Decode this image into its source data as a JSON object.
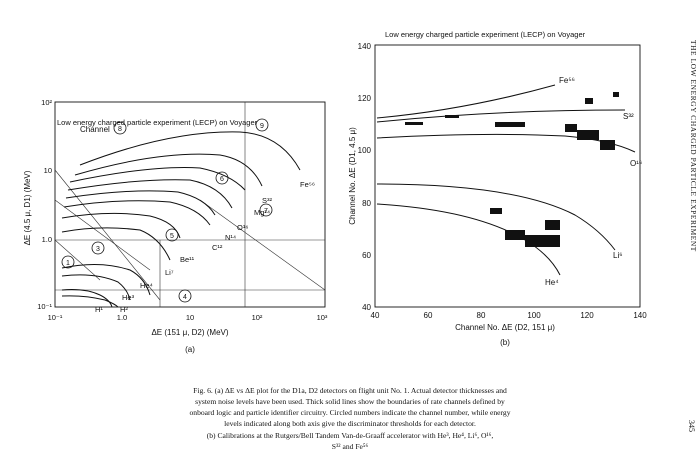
{
  "running_head": "THE LOW ENERGY CHARGED PARTICLE EXPERIMENT",
  "page_number": "345",
  "panel_a": {
    "title": "Low energy charged particle experiment (LECP) on Voyager",
    "xlabel": "ΔE (151 μ, D2) (MeV)",
    "ylabel": "ΔE (4.5 μ, D1) (MeV)",
    "label": "(a)",
    "channel_label": "Channel",
    "x_ticks": [
      "10⁻¹",
      "1.0",
      "10",
      "10²",
      "10³"
    ],
    "y_ticks": [
      "10²",
      "10",
      "1.0",
      "10⁻¹"
    ],
    "curve_labels": [
      "Fe⁵⁶",
      "S³²",
      "Mg²⁴",
      "O¹⁶",
      "N¹⁴",
      "C¹²",
      "Be¹¹",
      "Li⁷",
      "He⁴",
      "He³",
      "H¹",
      "H²"
    ],
    "channel_numbers": [
      "1",
      "3",
      "4",
      "5",
      "6",
      "7",
      "8",
      "9"
    ]
  },
  "panel_b": {
    "title": "Low energy charged particle experiment (LECP) on Voyager",
    "xlabel": "Channel No. ΔE (D2, 151 μ)",
    "ylabel": "Channel No. ΔE (D1, 4.5 μ)",
    "label": "(b)",
    "x_ticks": [
      "40",
      "60",
      "80",
      "100",
      "120",
      "140"
    ],
    "y_ticks": [
      "140",
      "120",
      "100",
      "80",
      "60",
      "40"
    ],
    "curve_labels": [
      "Fe⁵⁶",
      "S³²",
      "O¹⁶",
      "Li⁶",
      "He⁴"
    ]
  },
  "caption": {
    "line1": "Fig. 6.   (a) ΔE vs ΔE plot for the D1a, D2 detectors on flight unit No. 1. Actual detector thicknesses and",
    "line2": "system noise levels have been used. Thick solid lines show the boundaries of rate channels defined by",
    "line3": "onboard logic and particle identifier circuitry. Circled numbers indicate the channel number, while energy",
    "line4": "levels indicated along both axis give the discriminator thresholds for each detector.",
    "line5": "(b) Calibrations at the Rutgers/Bell Tandem Van-de-Graaff accelerator with He³, He⁴, Li⁶, O¹⁶,",
    "line6": "S³² and Fe⁵⁶"
  }
}
